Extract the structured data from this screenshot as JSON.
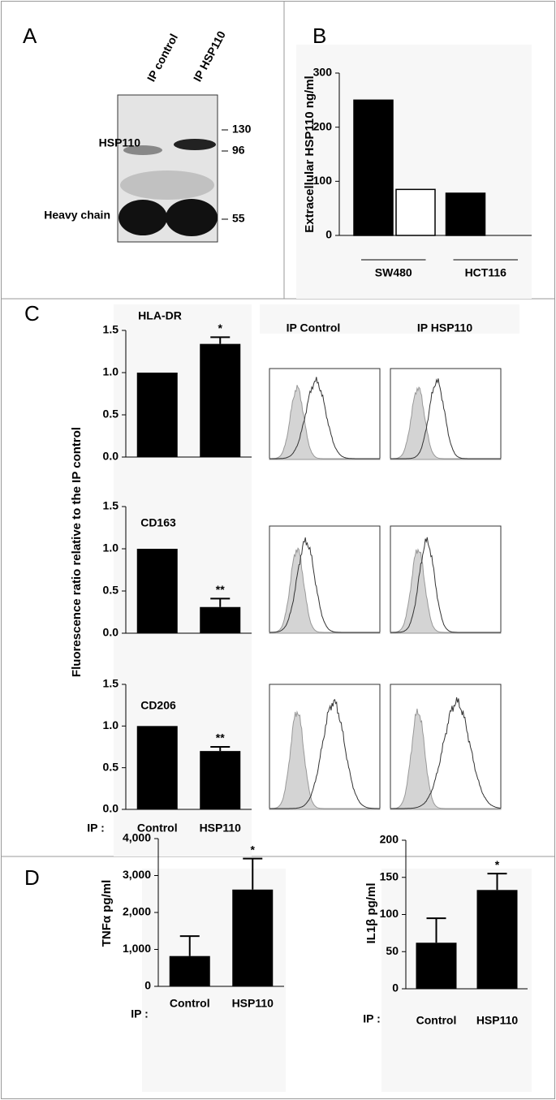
{
  "panel_labels": [
    "A",
    "B",
    "C",
    "D"
  ],
  "blot": {
    "lanes": [
      "IP control",
      "IP HSP110"
    ],
    "bands": [
      "HSP110",
      "Heavy chain"
    ],
    "markers": [
      130,
      96,
      55
    ]
  },
  "flow": {
    "columns": [
      "IP Control",
      "IP HSP110"
    ]
  },
  "chart_data": [
    {
      "type": "bar",
      "ylabel": "Extracellular  HSP110 ng/ml",
      "categories": [
        "SW480",
        "HCT116"
      ],
      "series": [
        {
          "color": "#000000",
          "values": [
            250,
            78
          ]
        },
        {
          "color": "#ffffff",
          "values": [
            85,
            null
          ]
        }
      ],
      "ylim": [
        0,
        300
      ],
      "yticks": [
        0,
        100,
        200,
        300
      ]
    },
    {
      "type": "bar",
      "title": "HLA-DR",
      "ylabel": "Fluorescence ratio relative to the IP control",
      "categories": [
        null,
        null
      ],
      "values": [
        1,
        1.34
      ],
      "errors": [
        null,
        0.08
      ],
      "annotations": [
        null,
        "*"
      ],
      "color": "#000000",
      "ylim": [
        0,
        1.5
      ],
      "yticks": [
        {
          "value": 0,
          "label": "0.0"
        },
        0.5,
        {
          "value": 1,
          "label": "1.0"
        },
        1.5
      ]
    },
    {
      "type": "bar",
      "title": "CD163",
      "categories": [
        null,
        null
      ],
      "values": [
        1,
        0.31
      ],
      "errors": [
        null,
        0.1
      ],
      "annotations": [
        null,
        "**"
      ],
      "color": "#000000",
      "ylim": [
        0,
        1.5
      ],
      "yticks": [
        {
          "value": 0,
          "label": "0.0"
        },
        0.5,
        {
          "value": 1,
          "label": "1.0"
        },
        1.5
      ]
    },
    {
      "type": "bar",
      "title": "CD206",
      "xlabel": "IP :",
      "categories": [
        "Control",
        "HSP110"
      ],
      "values": [
        1,
        0.7
      ],
      "errors": [
        null,
        0.05
      ],
      "annotations": [
        null,
        "**"
      ],
      "color": "#000000",
      "ylim": [
        0,
        1.5
      ],
      "yticks": [
        {
          "value": 0,
          "label": "0.0"
        },
        0.5,
        {
          "value": 1,
          "label": "1.0"
        },
        1.5
      ]
    },
    {
      "type": "bar",
      "ylabel": "TNFα  pg/ml",
      "xlabel": "IP :",
      "categories": [
        "Control",
        "HSP110"
      ],
      "values": [
        820,
        2620
      ],
      "errors": [
        540,
        840
      ],
      "annotations": [
        null,
        "*"
      ],
      "color": "#000000",
      "ylim": [
        0,
        4000
      ],
      "yticks": [
        0,
        {
          "value": 1000,
          "label": "1,000"
        },
        {
          "value": 2000,
          "label": "2,000"
        },
        {
          "value": 3000,
          "label": "3,000"
        },
        {
          "value": 4000,
          "label": "4,000"
        }
      ]
    },
    {
      "type": "bar",
      "ylabel": "IL1β  pg/ml",
      "xlabel": "IP :",
      "categories": [
        "Control",
        "HSP110"
      ],
      "values": [
        62,
        133
      ],
      "errors": [
        33,
        22
      ],
      "annotations": [
        null,
        "*"
      ],
      "color": "#000000",
      "ylim": [
        0,
        200
      ],
      "yticks": [
        0,
        50,
        100,
        150,
        200
      ]
    }
  ]
}
